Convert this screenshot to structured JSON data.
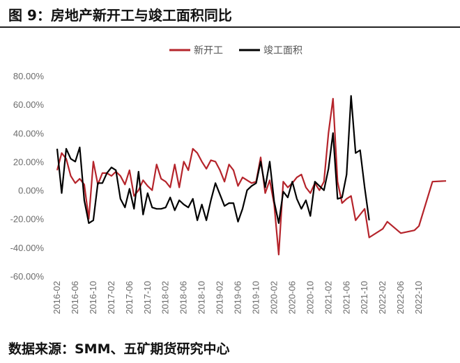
{
  "figure": {
    "title": "图 9：房地产新开工与竣工面积同比",
    "source": "数据来源：SMM、五矿期货研究中心"
  },
  "chart_data": {
    "type": "line",
    "title": "图 9：房地产新开工与竣工面积同比",
    "xlabel": "",
    "ylabel": "",
    "ylim": [
      -60,
      80
    ],
    "y_ticks": [
      "80.00%",
      "60.00%",
      "40.00%",
      "20.00%",
      "0.00%",
      "-20.00%",
      "-40.00%",
      "-60.00%"
    ],
    "x_ticks": [
      "2016-02",
      "2016-06",
      "2016-10",
      "2017-02",
      "2017-06",
      "2017-10",
      "2018-02",
      "2018-06",
      "2018-10",
      "2019-02",
      "2019-06",
      "2019-10",
      "2020-02",
      "2020-06",
      "2020-10",
      "2021-02",
      "2021-06",
      "2021-10",
      "2022-02",
      "2022-06",
      "2022-10"
    ],
    "x_start": "2016-02",
    "legend_position": "top",
    "grid": false,
    "series": [
      {
        "name": "新开工",
        "color": "#b5242b",
        "values": [
          14,
          26,
          22,
          10,
          5,
          8,
          4,
          -20,
          20,
          4,
          12,
          12,
          10,
          13,
          10,
          4,
          14,
          -4,
          0,
          7,
          3,
          0,
          18,
          8,
          6,
          2,
          18,
          2,
          20,
          14,
          29,
          26,
          20,
          15,
          21,
          20,
          14,
          6,
          18,
          14,
          3,
          9,
          7,
          5,
          6,
          23,
          -2,
          7,
          -10,
          -45,
          6,
          2,
          5,
          9,
          11,
          2,
          -2,
          5,
          0,
          6,
          40,
          64,
          6,
          -9,
          -6,
          -4,
          -21,
          -17,
          -13,
          -33,
          null,
          null,
          -27,
          -22,
          null,
          null,
          -30,
          null,
          null,
          -28,
          -25,
          null,
          null,
          6,
          null,
          null,
          6.5
        ],
        "value_unit": "%"
      },
      {
        "name": "竣工面积",
        "color": "#000000",
        "values": [
          29,
          -2,
          29,
          22,
          20,
          30,
          -7,
          -23,
          -21,
          5,
          5,
          12,
          16,
          14,
          -6,
          -12,
          1,
          -13,
          13,
          -17,
          -2,
          -12,
          -13,
          -13,
          -12,
          -5,
          -14,
          -7,
          -10,
          -12,
          -6,
          -21,
          -10,
          -21,
          -7,
          5,
          -3,
          -11,
          -9,
          -9,
          -22,
          -13,
          0,
          3,
          5,
          20,
          2,
          20,
          -8,
          -23,
          -1,
          -5,
          6,
          -6,
          -13,
          -7,
          -18,
          6,
          3,
          0,
          15,
          40,
          -6,
          -5,
          11,
          66,
          26,
          28,
          2,
          -21
        ],
        "value_unit": "%"
      }
    ]
  }
}
